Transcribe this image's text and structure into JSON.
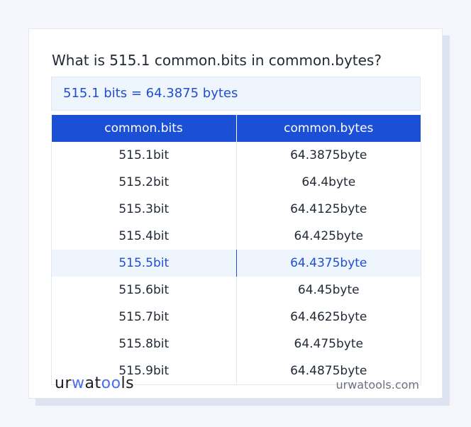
{
  "title": "What is 515.1 common.bits in common.bytes?",
  "result": "515.1 bits = 64.3875 bytes",
  "table": {
    "headers": [
      "common.bits",
      "common.bytes"
    ],
    "rows": [
      [
        "515.1bit",
        "64.3875byte"
      ],
      [
        "515.2bit",
        "64.4byte"
      ],
      [
        "515.3bit",
        "64.4125byte"
      ],
      [
        "515.4bit",
        "64.425byte"
      ],
      [
        "515.5bit",
        "64.4375byte"
      ],
      [
        "515.6bit",
        "64.45byte"
      ],
      [
        "515.7bit",
        "64.4625byte"
      ],
      [
        "515.8bit",
        "64.475byte"
      ],
      [
        "515.9bit",
        "64.4875byte"
      ]
    ],
    "highlighted_row": 4
  },
  "footer": {
    "logo": "urwatools",
    "site": "urwatools.com"
  },
  "colors": {
    "accent": "#1a4fd6",
    "highlight_bg": "#eef5fd"
  }
}
